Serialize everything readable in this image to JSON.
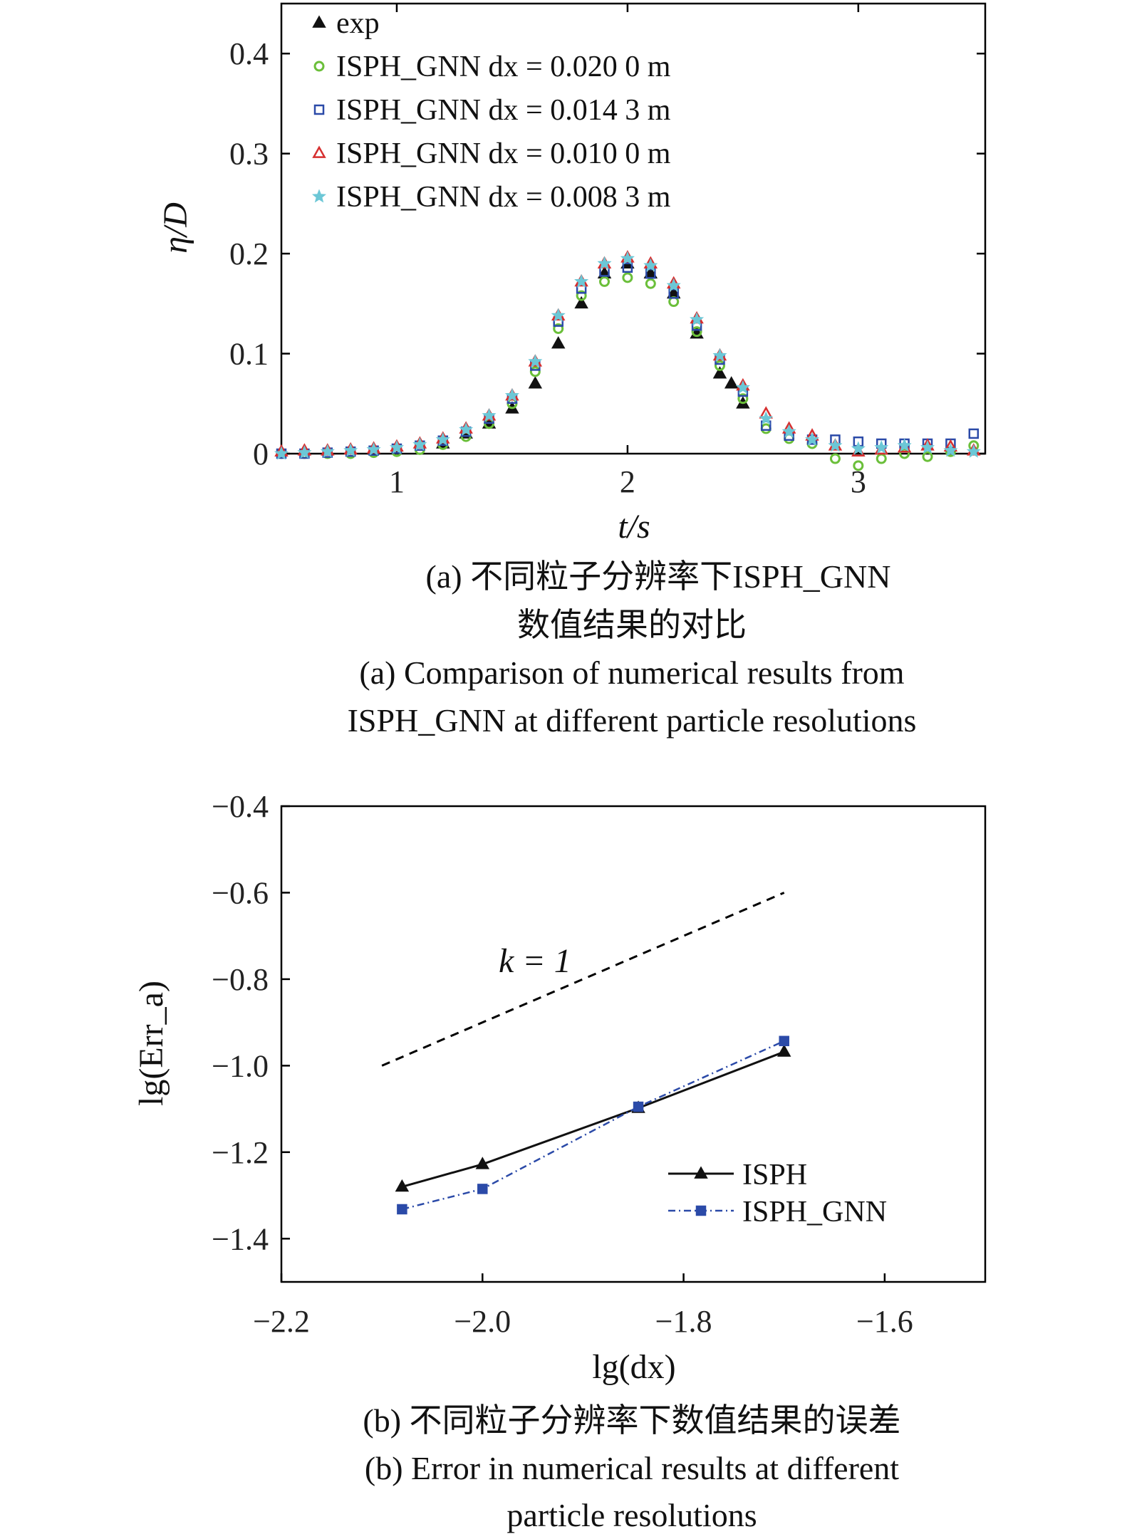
{
  "chart_data": [
    {
      "type": "scatter",
      "xlabel": "t/s",
      "ylabel": "η/D",
      "xlim": [
        0.5,
        3.55
      ],
      "ylim": [
        0,
        0.45
      ],
      "xticks": [
        "1",
        "2",
        "3"
      ],
      "yticks": [
        "0",
        "0.1",
        "0.2",
        "0.3",
        "0.4"
      ],
      "legend_position": "top-left",
      "grid": false,
      "caption_zh": [
        "(a) 不同粒子分辨率下ISPH_GNN",
        "数值结果的对比"
      ],
      "caption_en": [
        "(a) Comparison of numerical results from",
        "ISPH_GNN at different particle resolutions"
      ],
      "series": [
        {
          "name": "exp",
          "marker": "triangle-filled",
          "color": "#111111",
          "x": [
            1.2,
            1.3,
            1.4,
            1.5,
            1.6,
            1.7,
            1.8,
            1.9,
            2.0,
            2.1,
            2.2,
            2.3,
            2.4,
            2.45,
            2.5
          ],
          "y": [
            0.01,
            0.02,
            0.03,
            0.045,
            0.07,
            0.11,
            0.15,
            0.18,
            0.19,
            0.18,
            0.16,
            0.12,
            0.08,
            0.07,
            0.05
          ]
        },
        {
          "name": "ISPH_GNN dx = 0.020 0 m",
          "marker": "circle-open",
          "color": "#6bbf3a",
          "x": [
            0.5,
            0.6,
            0.7,
            0.8,
            0.9,
            1.0,
            1.1,
            1.2,
            1.3,
            1.4,
            1.5,
            1.6,
            1.7,
            1.8,
            1.9,
            2.0,
            2.1,
            2.2,
            2.3,
            2.4,
            2.5,
            2.6,
            2.7,
            2.8,
            2.9,
            3.0,
            3.1,
            3.2,
            3.3,
            3.4,
            3.5
          ],
          "y": [
            0.0,
            0.0,
            0.0,
            0.0,
            0.001,
            0.002,
            0.004,
            0.009,
            0.017,
            0.03,
            0.05,
            0.082,
            0.125,
            0.158,
            0.172,
            0.176,
            0.17,
            0.152,
            0.122,
            0.088,
            0.055,
            0.025,
            0.015,
            0.01,
            -0.005,
            -0.012,
            -0.005,
            0.0,
            -0.003,
            0.002,
            0.008
          ]
        },
        {
          "name": "ISPH_GNN dx = 0.014 3 m",
          "marker": "square-open",
          "color": "#2b4aa8",
          "x": [
            0.5,
            0.6,
            0.7,
            0.8,
            0.9,
            1.0,
            1.1,
            1.2,
            1.3,
            1.4,
            1.5,
            1.6,
            1.7,
            1.8,
            1.9,
            2.0,
            2.1,
            2.2,
            2.3,
            2.4,
            2.5,
            2.6,
            2.7,
            2.8,
            2.9,
            3.0,
            3.1,
            3.2,
            3.3,
            3.4,
            3.5
          ],
          "y": [
            0.0,
            0.0,
            0.001,
            0.002,
            0.003,
            0.005,
            0.008,
            0.013,
            0.022,
            0.035,
            0.055,
            0.088,
            0.132,
            0.165,
            0.182,
            0.186,
            0.18,
            0.16,
            0.128,
            0.094,
            0.062,
            0.028,
            0.018,
            0.014,
            0.014,
            0.012,
            0.01,
            0.01,
            0.01,
            0.01,
            0.02
          ]
        },
        {
          "name": "ISPH_GNN dx = 0.010 0 m",
          "marker": "triangle-open",
          "color": "#d62f2f",
          "x": [
            0.5,
            0.6,
            0.7,
            0.8,
            0.9,
            1.0,
            1.1,
            1.2,
            1.3,
            1.4,
            1.5,
            1.6,
            1.7,
            1.8,
            1.9,
            2.0,
            2.1,
            2.2,
            2.3,
            2.4,
            2.5,
            2.6,
            2.7,
            2.8,
            2.9,
            3.0,
            3.1,
            3.2,
            3.3,
            3.4,
            3.5
          ],
          "y": [
            0.002,
            0.003,
            0.003,
            0.004,
            0.005,
            0.007,
            0.01,
            0.015,
            0.025,
            0.038,
            0.058,
            0.092,
            0.138,
            0.172,
            0.19,
            0.196,
            0.19,
            0.17,
            0.135,
            0.098,
            0.068,
            0.04,
            0.025,
            0.018,
            0.008,
            0.002,
            0.004,
            0.006,
            0.008,
            0.007,
            0.003
          ]
        },
        {
          "name": "ISPH_GNN dx = 0.008 3 m",
          "marker": "star-filled",
          "color": "#6cc7d6",
          "x": [
            0.5,
            0.6,
            0.7,
            0.8,
            0.9,
            1.0,
            1.1,
            1.2,
            1.3,
            1.4,
            1.5,
            1.6,
            1.7,
            1.8,
            1.9,
            2.0,
            2.1,
            2.2,
            2.3,
            2.4,
            2.5,
            2.6,
            2.7,
            2.8,
            2.9,
            3.0,
            3.1,
            3.2,
            3.3,
            3.4,
            3.5
          ],
          "y": [
            0.0,
            0.001,
            0.002,
            0.003,
            0.004,
            0.006,
            0.009,
            0.014,
            0.024,
            0.038,
            0.058,
            0.092,
            0.138,
            0.172,
            0.19,
            0.195,
            0.188,
            0.168,
            0.134,
            0.098,
            0.066,
            0.035,
            0.022,
            0.014,
            0.008,
            0.005,
            0.006,
            0.008,
            0.006,
            0.003,
            0.002
          ]
        }
      ]
    },
    {
      "type": "line",
      "xlabel": "lg(dx)",
      "ylabel": "lg(Err_a)",
      "xlim": [
        -2.2,
        -1.5
      ],
      "ylim": [
        -1.5,
        -0.4
      ],
      "xticks": [
        "−2.2",
        "−2.0",
        "−1.8",
        "−1.6"
      ],
      "yticks": [
        "−0.4",
        "−0.6",
        "−0.8",
        "−1.0",
        "−1.2",
        "−1.4"
      ],
      "legend_position": "bottom-right",
      "grid": false,
      "annotation": "k = 1",
      "reference_line": {
        "x": [
          -2.1,
          -1.7
        ],
        "y": [
          -1.0,
          -0.6
        ],
        "style": "dashed"
      },
      "caption_zh": [
        "(b) 不同粒子分辨率下数值结果的误差"
      ],
      "caption_en": [
        "(b) Error in numerical results at different",
        "particle resolutions"
      ],
      "series": [
        {
          "name": "ISPH",
          "marker": "triangle-filled",
          "color": "#111111",
          "style": "solid",
          "x": [
            -2.08,
            -2.0,
            -1.845,
            -1.7
          ],
          "y": [
            -1.28,
            -1.228,
            -1.098,
            -0.968
          ]
        },
        {
          "name": "ISPH_GNN",
          "marker": "square-filled",
          "color": "#2b4aa8",
          "style": "dashdot",
          "x": [
            -2.08,
            -2.0,
            -1.845,
            -1.7
          ],
          "y": [
            -1.332,
            -1.285,
            -1.095,
            -0.943
          ]
        }
      ]
    }
  ]
}
